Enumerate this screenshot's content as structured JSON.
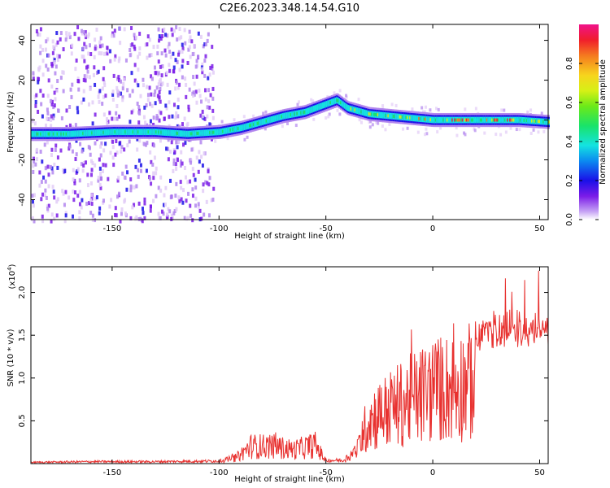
{
  "title": "C2E6.2023.348.14.54.G10",
  "chart_data": [
    {
      "type": "heatmap",
      "xlabel": "Height of straight line (km)",
      "ylabel": "Frequency (Hz)",
      "xlim": [
        -188,
        54
      ],
      "ylim": [
        -50,
        48
      ],
      "xticks": [
        -150,
        -100,
        -50,
        0,
        50
      ],
      "yticks": [
        -40,
        -20,
        0,
        20,
        40
      ],
      "colorbar": {
        "label": "Normalized spectral amplitude",
        "range": [
          0,
          1
        ],
        "ticks": [
          "0.0",
          "0.2",
          "0.4",
          "0.6",
          "0.8"
        ]
      },
      "ridge": {
        "x": [
          -188,
          -170,
          -150,
          -130,
          -115,
          -100,
          -90,
          -80,
          -70,
          -60,
          -55,
          -50,
          -45,
          -40,
          -30,
          -20,
          -10,
          0,
          10,
          20,
          30,
          40,
          54
        ],
        "y": [
          -7,
          -7,
          -6,
          -6,
          -7,
          -6,
          -4,
          -1,
          2,
          4,
          6,
          8,
          10,
          6,
          3,
          2,
          1,
          0,
          0,
          0,
          0,
          0,
          -1
        ]
      }
    },
    {
      "type": "line",
      "xlabel": "Height of straight line (km)",
      "ylabel": "SNR (10 * v/v)",
      "yscale_note": "(x10",
      "yscale_exp": "4",
      "xlim": [
        -188,
        54
      ],
      "ylim": [
        0,
        2.3
      ],
      "xticks": [
        -150,
        -100,
        -50,
        0,
        50
      ],
      "yticks": [
        "0.5",
        "1.0",
        "1.5",
        "2.0"
      ],
      "envelope_x": [
        -188,
        -160,
        -130,
        -100,
        -92,
        -85,
        -75,
        -65,
        -55,
        -50,
        -42,
        -35,
        -30,
        -20,
        -10,
        0,
        10,
        20,
        30,
        40,
        54
      ],
      "envelope_y": [
        0.02,
        0.03,
        0.03,
        0.04,
        0.12,
        0.35,
        0.35,
        0.28,
        0.38,
        0.05,
        0.05,
        0.3,
        0.9,
        1.1,
        1.3,
        1.5,
        1.55,
        1.7,
        1.8,
        1.8,
        1.82
      ],
      "color": "#e8312f"
    }
  ]
}
